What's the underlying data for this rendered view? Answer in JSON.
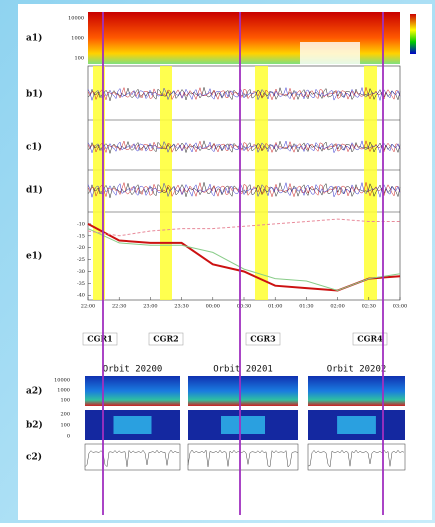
{
  "top_panels": [
    "a1)",
    "b1)",
    "c1)",
    "d1)",
    "e1)"
  ],
  "events": [
    "CGR1",
    "CGR2",
    "CGR3",
    "CGR4"
  ],
  "orbits": [
    "Orbit 20200",
    "Orbit 20201",
    "Orbit 20202"
  ],
  "bottom_panels": [
    "a2)",
    "b2)",
    "c2)"
  ],
  "a1_ticks": [
    "10000",
    "1000",
    "100"
  ],
  "a2_ticks": [
    "10000",
    "1000",
    "100"
  ],
  "b2_ticks": [
    "200",
    "100",
    "0"
  ],
  "chart_data": {
    "type": "line",
    "x": [
      "22:00",
      "22:30",
      "23:00",
      "23:30",
      "00:00",
      "00:30",
      "01:00",
      "01:30",
      "02:00",
      "02:30",
      "03:00"
    ],
    "series": [
      {
        "color": "#cc1111",
        "values": [
          -10,
          -17,
          -18,
          -18,
          -27,
          -30,
          -36,
          -37,
          -38,
          -33,
          -32
        ]
      },
      {
        "color": "#88cc88",
        "values": [
          -12,
          -18,
          -19,
          -19,
          -22,
          -29,
          -33,
          -34,
          -38,
          -33,
          -31
        ]
      },
      {
        "color": "#e88a9a",
        "values": [
          -13,
          -15,
          -13,
          -12,
          -12,
          -11,
          -10,
          -9,
          -8,
          -9,
          -9
        ]
      }
    ],
    "ylim": [
      -42,
      -5
    ],
    "yticks": [
      -10,
      -15,
      -20,
      -25,
      -30,
      -35,
      -40
    ]
  }
}
